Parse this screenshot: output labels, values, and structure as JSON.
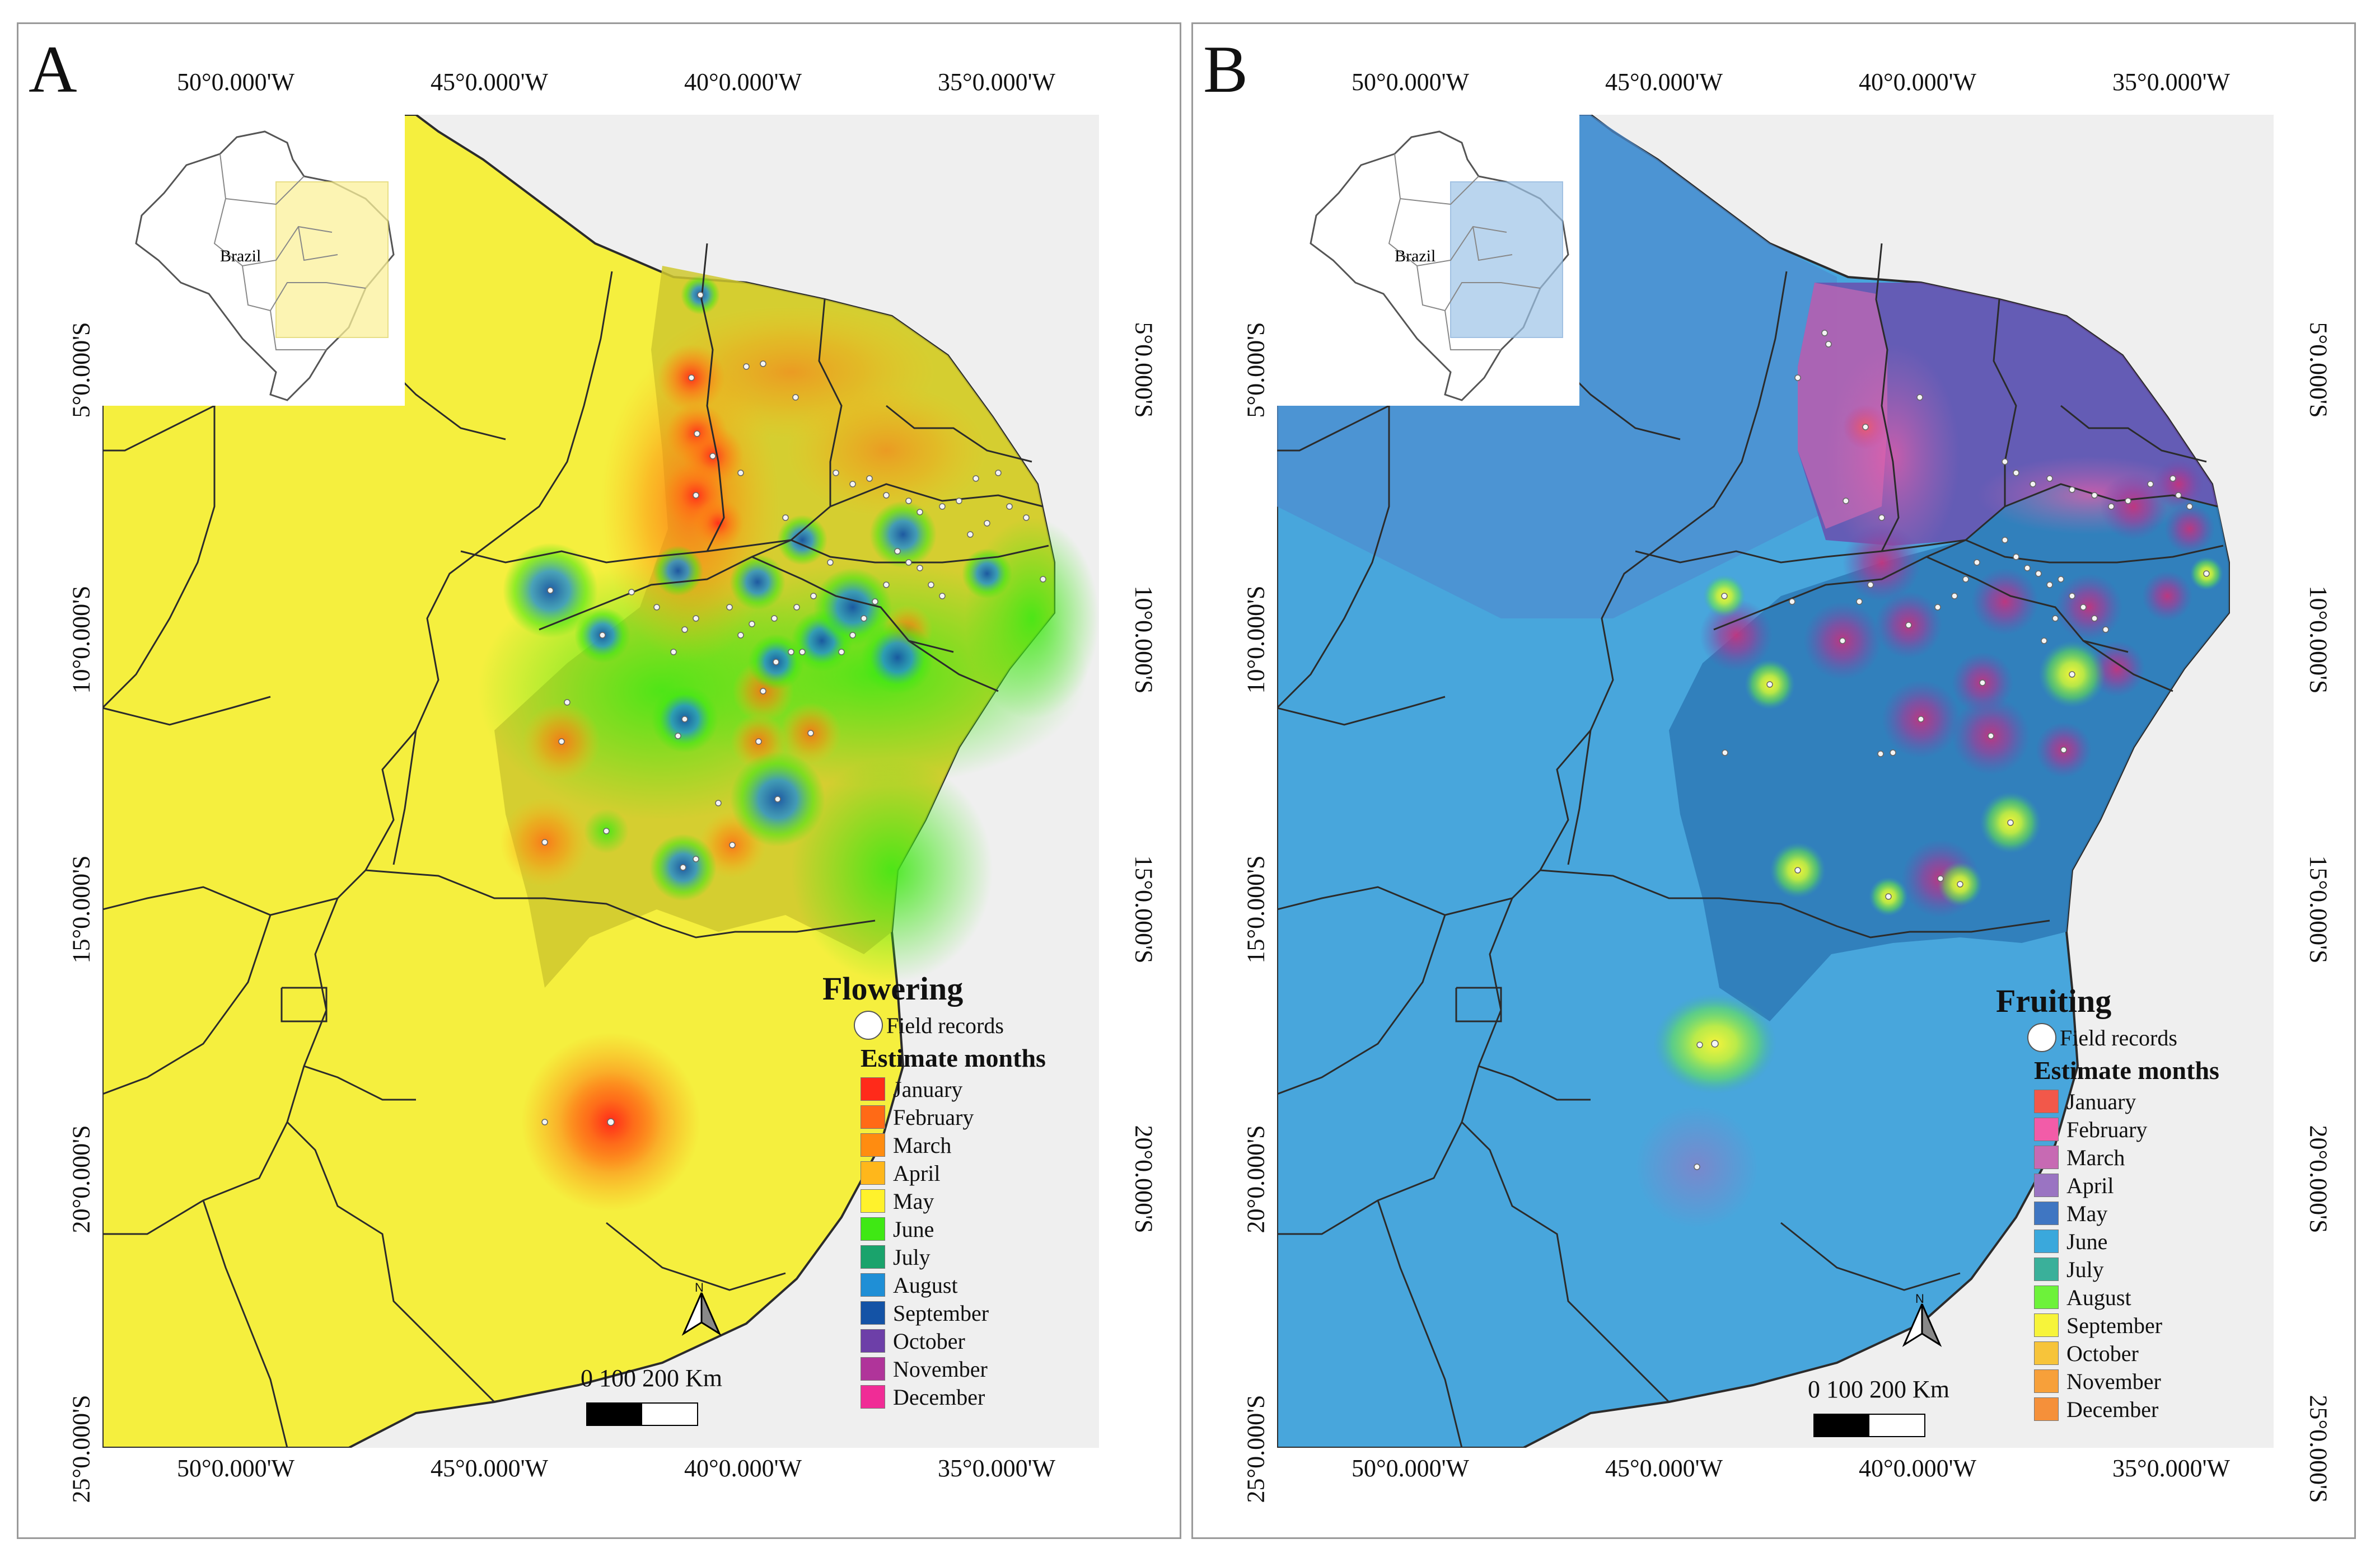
{
  "panels": [
    {
      "letter": "A",
      "legend": {
        "title": "Flowering",
        "field_records": "Field records",
        "estimate_header": "Estimate months",
        "months": [
          {
            "label": "January",
            "color": "#ff2a1a"
          },
          {
            "label": "February",
            "color": "#ff6a16"
          },
          {
            "label": "March",
            "color": "#ff8c10"
          },
          {
            "label": "April",
            "color": "#ffb71b"
          },
          {
            "label": "May",
            "color": "#fff22c"
          },
          {
            "label": "June",
            "color": "#3fe814"
          },
          {
            "label": "July",
            "color": "#1aa36c"
          },
          {
            "label": "August",
            "color": "#1f8fd6"
          },
          {
            "label": "September",
            "color": "#1453a6"
          },
          {
            "label": "October",
            "color": "#6d3fa8"
          },
          {
            "label": "November",
            "color": "#b0349a"
          },
          {
            "label": "December",
            "color": "#f02c96"
          }
        ]
      },
      "scale": {
        "label": "0   100  200 Km"
      }
    },
    {
      "letter": "B",
      "legend": {
        "title": "Fruiting",
        "field_records": "Field records",
        "estimate_header": "Estimate months",
        "months": [
          {
            "label": "January",
            "color": "#f2584a"
          },
          {
            "label": "February",
            "color": "#f25ca8"
          },
          {
            "label": "March",
            "color": "#c76ab3"
          },
          {
            "label": "April",
            "color": "#9a74c2"
          },
          {
            "label": "May",
            "color": "#3f76c2"
          },
          {
            "label": "June",
            "color": "#3aa8dc"
          },
          {
            "label": "July",
            "color": "#3ab09a"
          },
          {
            "label": "August",
            "color": "#6df23a"
          },
          {
            "label": "September",
            "color": "#f7f43a"
          },
          {
            "label": "October",
            "color": "#f7c43a"
          },
          {
            "label": "November",
            "color": "#f7a03a"
          },
          {
            "label": "December",
            "color": "#f5903a"
          }
        ]
      },
      "scale": {
        "label": "0   100  200 Km"
      }
    }
  ],
  "inset": {
    "country_label": "Brazil"
  },
  "north_label": "N",
  "axes": {
    "longitudes": [
      "50°0.000'W",
      "45°0.000'W",
      "40°0.000'W",
      "35°0.000'W"
    ],
    "latitudes": [
      "5°0.000'S",
      "10°0.000'S",
      "15°0.000'S",
      "20°0.000'S",
      "25°0.000'S"
    ]
  },
  "colors": {
    "sea": "#efefef",
    "flowering_base": "#f5ef3e",
    "fruiting_base": "#48a6dc",
    "border": "#2b2b2b",
    "record_dot": "#f4f4f4"
  }
}
